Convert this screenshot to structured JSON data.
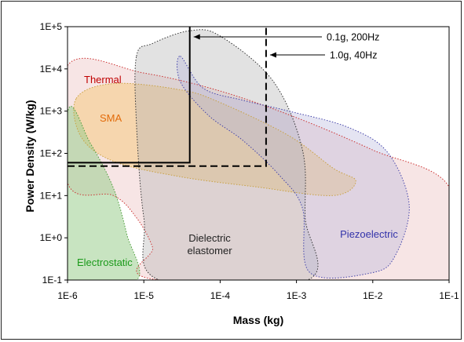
{
  "chart_data": {
    "type": "area",
    "title": "",
    "xlabel": "Mass (kg)",
    "ylabel": "Power Density (W/kg)",
    "x_scale": "log",
    "y_scale": "log",
    "xlim": [
      1e-06,
      0.1
    ],
    "ylim": [
      0.1,
      100000.0
    ],
    "x_ticks": [
      "1E-6",
      "1E-5",
      "1E-4",
      "1E-3",
      "1E-2",
      "1E-1"
    ],
    "y_ticks": [
      "1E-1",
      "1E+0",
      "1E+1",
      "1E+2",
      "1E+3",
      "1E+4",
      "1E+5"
    ],
    "grid": false,
    "regions": [
      {
        "name": "Thermal",
        "color": "#e3a3a3",
        "label_color": "#c00000",
        "boundary": [
          [
            1e-06,
            12000.0
          ],
          [
            1e-05,
            8000.0
          ],
          [
            0.0001,
            3000.0
          ],
          [
            0.001,
            700
          ],
          [
            0.01,
            120
          ],
          [
            0.1,
            16
          ],
          [
            0.1,
            0.1
          ],
          [
            1.6e-05,
            0.1
          ],
          [
            1.3e-05,
            0.6
          ],
          [
            8e-06,
            3
          ],
          [
            4e-06,
            10
          ],
          [
            1e-06,
            20
          ]
        ]
      },
      {
        "name": "SMA",
        "color": "#f3c46a",
        "label_color": "#e26b0a",
        "boundary": [
          [
            1.3e-06,
            2000
          ],
          [
            4e-06,
            4500
          ],
          [
            3e-05,
            3200
          ],
          [
            0.0001,
            1600
          ],
          [
            0.0008,
            260
          ],
          [
            0.003,
            45
          ],
          [
            0.006,
            22
          ],
          [
            0.003,
            10
          ],
          [
            0.0003,
            16
          ],
          [
            3e-05,
            28
          ],
          [
            4e-06,
            65
          ],
          [
            1.5e-06,
            250
          ]
        ]
      },
      {
        "name": "Electrostatic",
        "color": "#9acd8e",
        "label_color": "#1a9a1a",
        "boundary": [
          [
            1e-06,
            900
          ],
          [
            2e-06,
            170
          ],
          [
            4e-06,
            15
          ],
          [
            6e-06,
            1.2
          ],
          [
            8e-06,
            0.1
          ],
          [
            1e-06,
            0.1
          ]
        ]
      },
      {
        "name": "Dielectric elastomer",
        "color": "#b4b4b4",
        "label_color": "#222222",
        "boundary": [
          [
            8e-06,
            20000.0
          ],
          [
            1.3e-05,
            40000.0
          ],
          [
            4e-05,
            80000.0
          ],
          [
            0.0001,
            60000.0
          ],
          [
            0.0005,
            5000.0
          ],
          [
            0.0012,
            120
          ],
          [
            0.0013,
            3
          ],
          [
            0.0014,
            0.1
          ],
          [
            1.6e-05,
            0.1
          ],
          [
            1e-05,
            3
          ],
          [
            8e-06,
            500
          ]
        ]
      },
      {
        "name": "Piezoelectric",
        "color": "#b3b3dc",
        "label_color": "#3333aa",
        "boundary": [
          [
            3e-05,
            20000.0
          ],
          [
            6e-05,
            3500.0
          ],
          [
            0.0002,
            1800.0
          ],
          [
            0.0008,
            1000.0
          ],
          [
            0.005,
            400
          ],
          [
            0.016,
            100
          ],
          [
            0.03,
            6
          ],
          [
            0.02,
            0.4
          ],
          [
            0.01,
            0.15
          ],
          [
            0.0015,
            0.15
          ],
          [
            0.0012,
            5
          ],
          [
            0.0006,
            30
          ],
          [
            0.0002,
            200
          ],
          [
            7e-05,
            800
          ],
          [
            3e-05,
            5000.0
          ]
        ]
      }
    ],
    "limit_lines": [
      {
        "name": "0.1g, 200Hz",
        "style": "solid",
        "mass": 4e-05,
        "power_density": 60
      },
      {
        "name": "1.0g, 40Hz",
        "style": "dashed",
        "mass": 0.0004,
        "power_density": 50
      }
    ],
    "annotations": [
      "0.1g, 200Hz",
      "1.0g, 40Hz"
    ]
  }
}
